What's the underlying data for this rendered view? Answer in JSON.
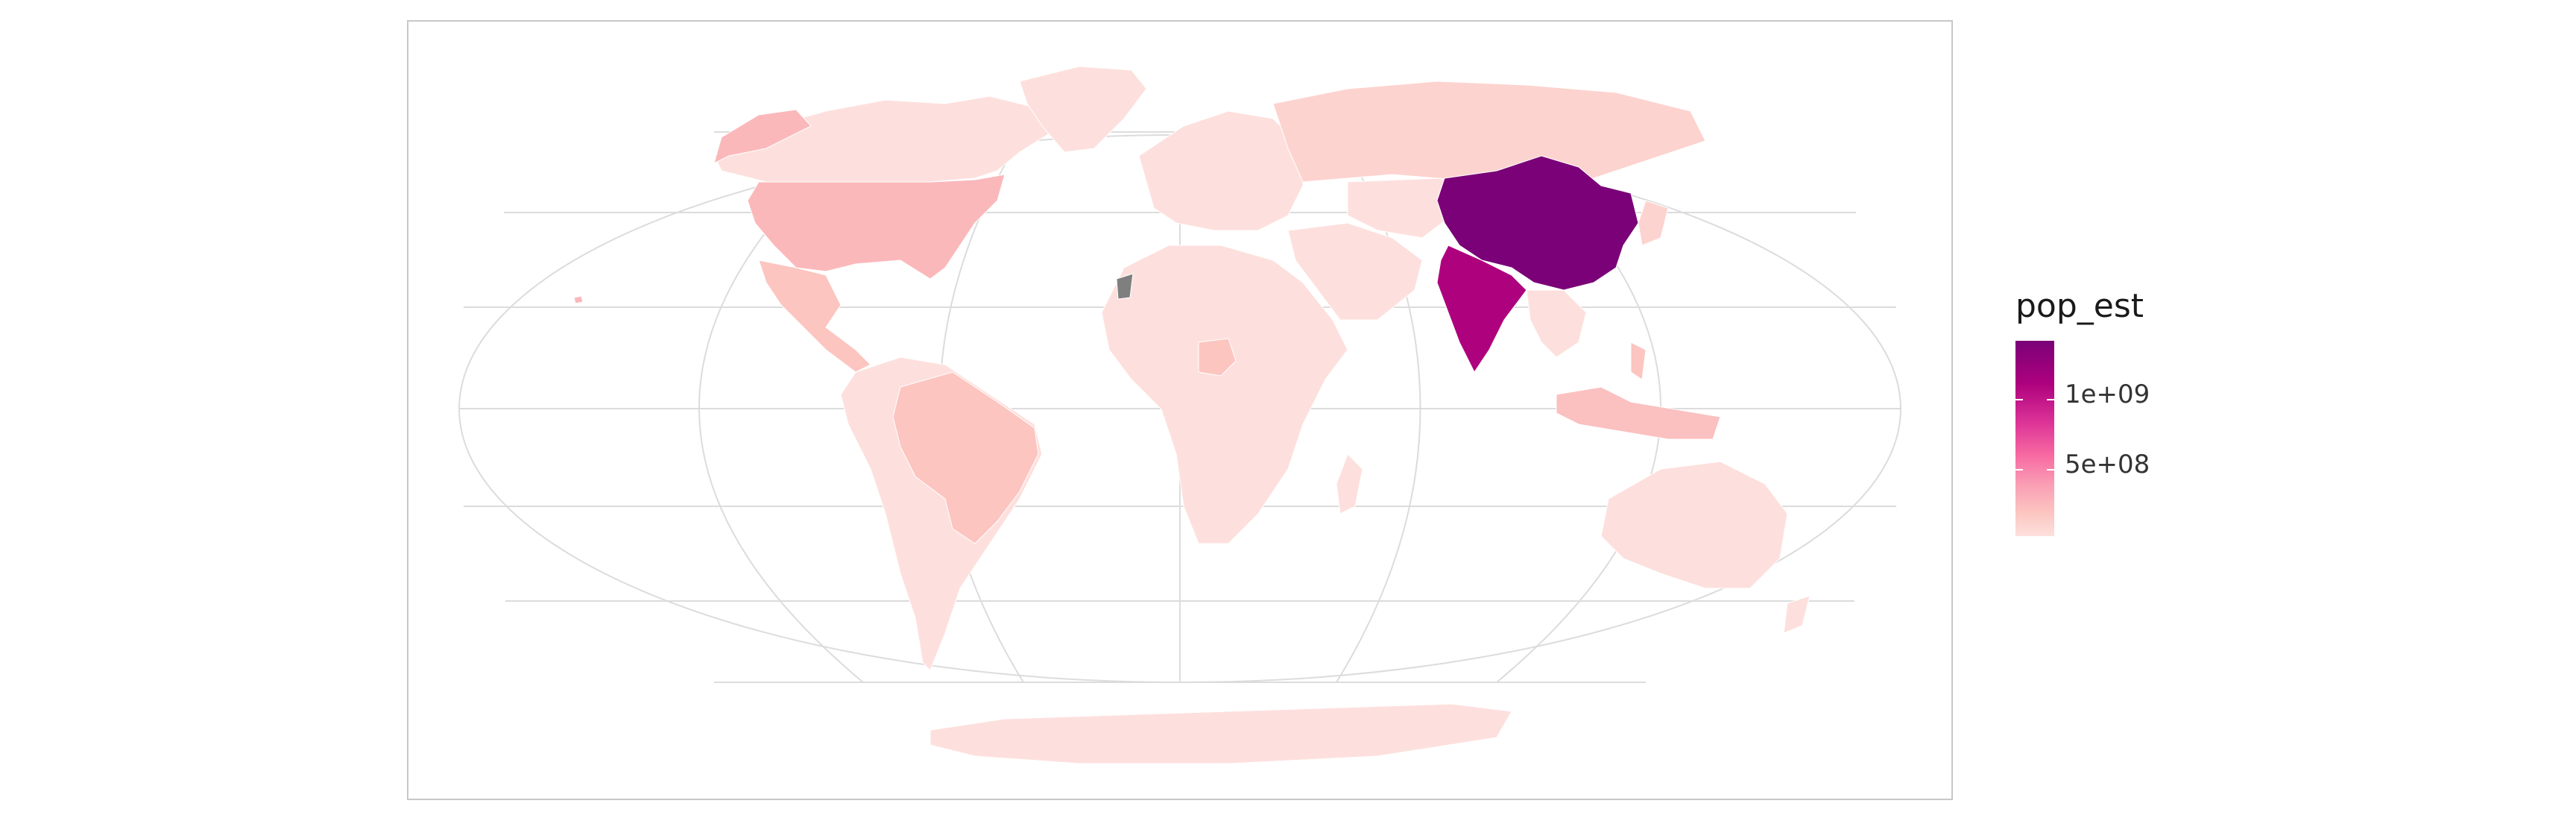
{
  "legend": {
    "title": "pop_est",
    "breaks": [
      {
        "label": "1e+09",
        "value": 1000000000
      },
      {
        "label": "5e+08",
        "value": 500000000
      }
    ],
    "range": [
      0,
      1400000000
    ],
    "colors": [
      "#fde0dd",
      "#fcc5c0",
      "#fa9fb5",
      "#f768a1",
      "#dd3497",
      "#ae017e",
      "#7a0177"
    ]
  },
  "map": {
    "projection": "Robinson-like world (ggplot2 coord_sf)",
    "graticule_color": "#dcdcdc",
    "na_color": "#7f7f7f",
    "countries_highlighted": [
      {
        "name": "China",
        "pop_est": 1400000000,
        "color": "#7a0177"
      },
      {
        "name": "India",
        "pop_est": 1300000000,
        "color": "#ae017e"
      },
      {
        "name": "United States",
        "pop_est": 330000000,
        "color": "#fbb8bb"
      },
      {
        "name": "Indonesia",
        "pop_est": 270000000,
        "color": "#fbc0c0"
      },
      {
        "name": "Brazil",
        "pop_est": 210000000,
        "color": "#fcc5c0"
      },
      {
        "name": "Russia",
        "pop_est": 145000000,
        "color": "#fdd3cf"
      }
    ]
  }
}
